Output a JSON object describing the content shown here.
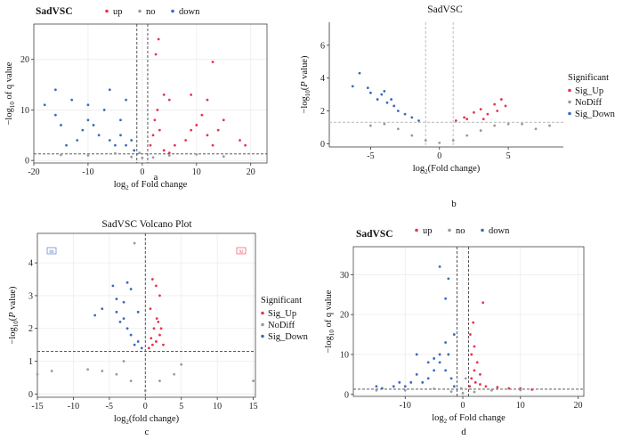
{
  "chart_data": [
    {
      "panel": "a",
      "type": "scatter",
      "title": "SadVSC",
      "legend": {
        "placement": "top",
        "entries": [
          {
            "label": "up",
            "color": "#e8344d"
          },
          {
            "label": "no",
            "color": "#9a9a9a"
          },
          {
            "label": "down",
            "color": "#3b6bbd"
          }
        ]
      },
      "xlabel": "log2 of Fold change",
      "ylabel": "-log10 of q value",
      "xlim": [
        -20,
        23
      ],
      "ylim": [
        -0.5,
        27
      ],
      "xticks": [
        -20,
        -10,
        0,
        10,
        20
      ],
      "yticks": [
        0,
        10,
        20
      ],
      "vlines": [
        -1,
        1
      ],
      "hline": 1.3,
      "grid": true,
      "series": [
        {
          "name": "up",
          "color": "#e8344d",
          "points": [
            [
              1.5,
              3
            ],
            [
              2,
              5
            ],
            [
              2.3,
              8
            ],
            [
              2.8,
              10
            ],
            [
              3.2,
              6
            ],
            [
              4,
              2
            ],
            [
              5,
              1.5
            ],
            [
              6,
              3
            ],
            [
              8,
              4
            ],
            [
              9,
              6
            ],
            [
              10,
              7
            ],
            [
              11,
              9
            ],
            [
              12,
              5
            ],
            [
              13,
              3
            ],
            [
              14,
              6
            ],
            [
              15,
              8
            ],
            [
              18,
              4
            ],
            [
              19,
              3
            ],
            [
              2.5,
              21
            ],
            [
              4,
              13
            ],
            [
              5,
              12
            ],
            [
              9,
              13
            ],
            [
              13,
              19.5
            ],
            [
              3,
              24
            ],
            [
              12,
              12
            ]
          ]
        },
        {
          "name": "no",
          "color": "#9a9a9a",
          "points": [
            [
              -10,
              1
            ],
            [
              -5,
              1.4
            ],
            [
              -2,
              0.7
            ],
            [
              0,
              0.5
            ],
            [
              2,
              0.6
            ],
            [
              5,
              1
            ],
            [
              10,
              1.2
            ],
            [
              15,
              0.8
            ],
            [
              -15,
              1.1
            ],
            [
              -0.5,
              1.5
            ]
          ]
        },
        {
          "name": "down",
          "color": "#3b6bbd",
          "points": [
            [
              -1.5,
              2
            ],
            [
              -2,
              4
            ],
            [
              -3,
              3
            ],
            [
              -4,
              5
            ],
            [
              -5,
              3
            ],
            [
              -6,
              4
            ],
            [
              -8,
              5
            ],
            [
              -9,
              7
            ],
            [
              -10,
              8
            ],
            [
              -11,
              6
            ],
            [
              -12,
              4
            ],
            [
              -14,
              3
            ],
            [
              -15,
              7
            ],
            [
              -16,
              9
            ],
            [
              -13,
              12
            ],
            [
              -7,
              10
            ],
            [
              -6,
              14
            ],
            [
              -10,
              11
            ],
            [
              -4,
              8
            ],
            [
              -3,
              12
            ],
            [
              -18,
              11
            ],
            [
              -16,
              14
            ]
          ]
        }
      ],
      "caption": "a"
    },
    {
      "panel": "b",
      "type": "scatter",
      "title": "SadVSC",
      "legend": {
        "placement": "right",
        "title": "Significant",
        "entries": [
          {
            "label": "Sig_Up",
            "color": "#e8344d"
          },
          {
            "label": "NoDiff",
            "color": "#9a9a9a"
          },
          {
            "label": "Sig_Down",
            "color": "#3b6bbd"
          }
        ]
      },
      "xlabel": "log2(Fold change)",
      "ylabel": "-log10(P value)",
      "xlim": [
        -8,
        9
      ],
      "ylim": [
        -0.2,
        7.4
      ],
      "xticks": [
        -5,
        0,
        5
      ],
      "yticks": [
        0,
        2,
        4,
        6
      ],
      "vlines": [
        -1,
        1
      ],
      "hline": 1.3,
      "grid": false,
      "series": [
        {
          "name": "Sig_Up",
          "color": "#e8344d",
          "points": [
            [
              1.2,
              1.4
            ],
            [
              1.8,
              1.6
            ],
            [
              2.5,
              1.9
            ],
            [
              3,
              2.1
            ],
            [
              3.5,
              1.8
            ],
            [
              4,
              2.4
            ],
            [
              4.5,
              2.7
            ],
            [
              2,
              1.5
            ],
            [
              3.2,
              1.5
            ],
            [
              4.2,
              2
            ],
            [
              4.8,
              2.3
            ]
          ]
        },
        {
          "name": "NoDiff",
          "color": "#9a9a9a",
          "points": [
            [
              -4,
              1.2
            ],
            [
              -3,
              0.9
            ],
            [
              -2,
              0.5
            ],
            [
              -1,
              0.2
            ],
            [
              0,
              0.05
            ],
            [
              1,
              0.2
            ],
            [
              2,
              0.5
            ],
            [
              3,
              0.8
            ],
            [
              4,
              1.1
            ],
            [
              5,
              1.2
            ],
            [
              -5,
              1.1
            ],
            [
              6,
              1.2
            ],
            [
              7,
              0.9
            ],
            [
              8,
              1.1
            ]
          ]
        },
        {
          "name": "Sig_Down",
          "color": "#3b6bbd",
          "points": [
            [
              -1.5,
              1.4
            ],
            [
              -2,
              1.6
            ],
            [
              -2.5,
              1.8
            ],
            [
              -3,
              2
            ],
            [
              -3.3,
              2.3
            ],
            [
              -3.8,
              2.5
            ],
            [
              -4.2,
              3
            ],
            [
              -4.5,
              2.7
            ],
            [
              -5,
              3.1
            ],
            [
              -5.2,
              3.4
            ],
            [
              -4,
              3.2
            ],
            [
              -3.5,
              2.7
            ],
            [
              -6.3,
              3.5
            ],
            [
              -5.8,
              4.3
            ]
          ]
        }
      ],
      "caption": "b"
    },
    {
      "panel": "c",
      "type": "scatter",
      "title": "SadVSC Volcano Plot",
      "legend": {
        "placement": "right",
        "title": "Significant",
        "entries": [
          {
            "label": "Sig_Up",
            "color": "#e8344d"
          },
          {
            "label": "NoDiff",
            "color": "#9a9a9a"
          },
          {
            "label": "Sig_Down",
            "color": "#3b6bbd"
          }
        ]
      },
      "xlabel": "log2(fold change)",
      "ylabel": "-log10(P value)",
      "xlim": [
        -15,
        15.3
      ],
      "ylim": [
        -0.1,
        4.9
      ],
      "xticks": [
        -15,
        -10,
        -5,
        0,
        5,
        10,
        15
      ],
      "yticks": [
        0,
        1,
        2,
        3,
        4
      ],
      "vlines": [
        0
      ],
      "hline": 1.3,
      "grid": true,
      "corner_labels": [
        "66",
        "92"
      ],
      "series": [
        {
          "name": "Sig_Up",
          "color": "#e8344d",
          "points": [
            [
              0.5,
              1.4
            ],
            [
              1,
              1.5
            ],
            [
              1.5,
              1.6
            ],
            [
              2,
              1.8
            ],
            [
              2.5,
              1.5
            ],
            [
              1.2,
              2
            ],
            [
              1.8,
              2.2
            ],
            [
              0.8,
              1.7
            ],
            [
              2.2,
              2
            ],
            [
              1.5,
              3.3
            ],
            [
              2,
              3
            ],
            [
              1,
              3.5
            ],
            [
              0.7,
              2.6
            ],
            [
              1.6,
              2.3
            ]
          ]
        },
        {
          "name": "NoDiff",
          "color": "#9a9a9a",
          "points": [
            [
              -8,
              0.75
            ],
            [
              -6,
              0.7
            ],
            [
              -4,
              0.6
            ],
            [
              -2,
              0.4
            ],
            [
              0,
              0.1
            ],
            [
              2,
              0.4
            ],
            [
              4,
              0.6
            ],
            [
              5,
              0.9
            ],
            [
              -3,
              1
            ],
            [
              -13,
              0.7
            ],
            [
              15,
              0.4
            ],
            [
              -15,
              0.6
            ],
            [
              -1.5,
              4.6
            ]
          ]
        },
        {
          "name": "Sig_Down",
          "color": "#3b6bbd",
          "points": [
            [
              -0.5,
              1.4
            ],
            [
              -1,
              1.6
            ],
            [
              -1.5,
              1.5
            ],
            [
              -2,
              1.8
            ],
            [
              -2.5,
              2
            ],
            [
              -3,
              2.3
            ],
            [
              -3.5,
              2.2
            ],
            [
              -4,
              2.5
            ],
            [
              -7,
              2.4
            ],
            [
              -6,
              2.6
            ],
            [
              -4.5,
              3.3
            ],
            [
              -2,
              3.2
            ],
            [
              -3,
              2.8
            ],
            [
              -1,
              2.5
            ],
            [
              -2.5,
              3.4
            ],
            [
              -4,
              2.9
            ]
          ]
        }
      ],
      "caption": "c"
    },
    {
      "panel": "d",
      "type": "scatter",
      "title": "SadVSC",
      "legend": {
        "placement": "top",
        "entries": [
          {
            "label": "up",
            "color": "#e8344d"
          },
          {
            "label": "no",
            "color": "#9a9a9a"
          },
          {
            "label": "down",
            "color": "#3b6bbd"
          }
        ]
      },
      "xlabel": "log2 of Fold change",
      "ylabel": "-log10 of q value",
      "xlim": [
        -19,
        21
      ],
      "ylim": [
        -0.5,
        37
      ],
      "xticks": [
        -10,
        0,
        10,
        20
      ],
      "yticks": [
        0,
        10,
        20,
        30
      ],
      "vlines": [
        -1,
        1
      ],
      "hline": 1.3,
      "grid": true,
      "series": [
        {
          "name": "up",
          "color": "#e8344d",
          "points": [
            [
              1.2,
              2
            ],
            [
              1.5,
              4
            ],
            [
              2,
              6
            ],
            [
              2.5,
              8
            ],
            [
              3,
              5
            ],
            [
              1.5,
              10
            ],
            [
              2,
              12
            ],
            [
              1.3,
              15
            ],
            [
              2.2,
              3
            ],
            [
              3,
              2.5
            ],
            [
              4,
              2
            ],
            [
              6,
              1.8
            ],
            [
              8,
              1.5
            ],
            [
              10,
              1.5
            ],
            [
              12,
              1.2
            ],
            [
              3.5,
              23
            ],
            [
              1.8,
              18
            ]
          ]
        },
        {
          "name": "no",
          "color": "#9a9a9a",
          "points": [
            [
              -10,
              1
            ],
            [
              -5,
              1.4
            ],
            [
              -2,
              0.7
            ],
            [
              0,
              0.3
            ],
            [
              2,
              0.6
            ],
            [
              5,
              1
            ],
            [
              10,
              1.1
            ],
            [
              -15,
              1
            ],
            [
              -0.3,
              1.5
            ],
            [
              0.5,
              4
            ]
          ]
        },
        {
          "name": "down",
          "color": "#3b6bbd",
          "points": [
            [
              -1.5,
              2
            ],
            [
              -2,
              4
            ],
            [
              -3,
              6
            ],
            [
              -4,
              8
            ],
            [
              -5,
              6
            ],
            [
              -6,
              4
            ],
            [
              -7,
              3
            ],
            [
              -8,
              5
            ],
            [
              -9,
              3
            ],
            [
              -10,
              2
            ],
            [
              -11,
              3
            ],
            [
              -12,
              2
            ],
            [
              -14,
              1.5
            ],
            [
              -15,
              2
            ],
            [
              -2.5,
              10
            ],
            [
              -3,
              13
            ],
            [
              -1.5,
              15
            ],
            [
              -4,
              10
            ],
            [
              -5,
              9
            ],
            [
              -6,
              8
            ],
            [
              -8,
              10
            ],
            [
              -4,
              32
            ],
            [
              -2.5,
              29
            ],
            [
              -3,
              24
            ]
          ]
        }
      ],
      "caption": "d"
    }
  ]
}
